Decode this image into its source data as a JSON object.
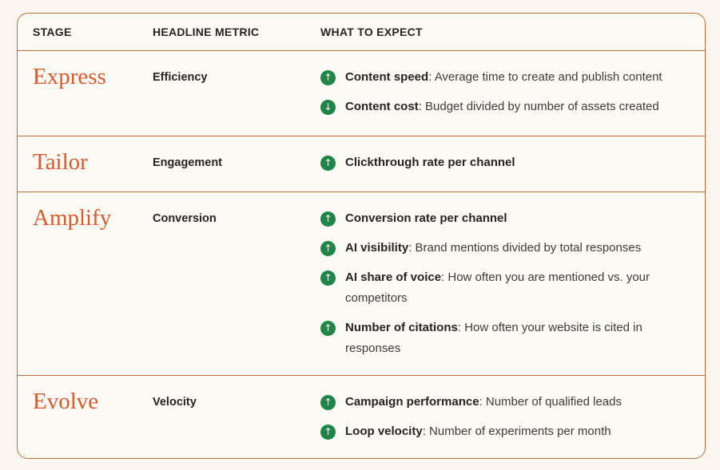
{
  "colors": {
    "page_bg": "#FAF5EE",
    "table_bg": "#FCFAF5",
    "border_orange": "#BC6F3A",
    "stage_orange": "#DC5A2D",
    "text_dark": "#262524",
    "text_body": "#3E3C3A",
    "green": "#1E8748"
  },
  "icons": {
    "up": "↑",
    "down": "↓"
  },
  "table": {
    "headers": [
      "STAGE",
      "HEADLINE METRIC",
      "WHAT TO EXPECT"
    ],
    "rows": [
      {
        "stage": "Express",
        "metric": "Efficiency",
        "expectations": [
          {
            "direction": "up",
            "label": "Content speed",
            "description": ": Average time to create and publish content"
          },
          {
            "direction": "down",
            "label": "Content cost",
            "description": ": Budget divided by number of assets created"
          }
        ]
      },
      {
        "stage": "Tailor",
        "metric": "Engagement",
        "expectations": [
          {
            "direction": "up",
            "label": "Clickthrough rate per channel",
            "description": ""
          }
        ]
      },
      {
        "stage": "Amplify",
        "metric": "Conversion",
        "expectations": [
          {
            "direction": "up",
            "label": "Conversion rate per channel",
            "description": ""
          },
          {
            "direction": "up",
            "label": "AI visibility",
            "description": ": Brand mentions divided by total responses"
          },
          {
            "direction": "up",
            "label": "AI share of voice",
            "description": ": How often you are mentioned vs. your competitors"
          },
          {
            "direction": "up",
            "label": "Number of citations",
            "description": ": How often your website is cited in responses"
          }
        ]
      },
      {
        "stage": "Evolve",
        "metric": "Velocity",
        "expectations": [
          {
            "direction": "up",
            "label": "Campaign performance",
            "description": ": Number of qualified leads"
          },
          {
            "direction": "up",
            "label": "Loop velocity",
            "description": ": Number of experiments per month"
          }
        ]
      }
    ]
  }
}
